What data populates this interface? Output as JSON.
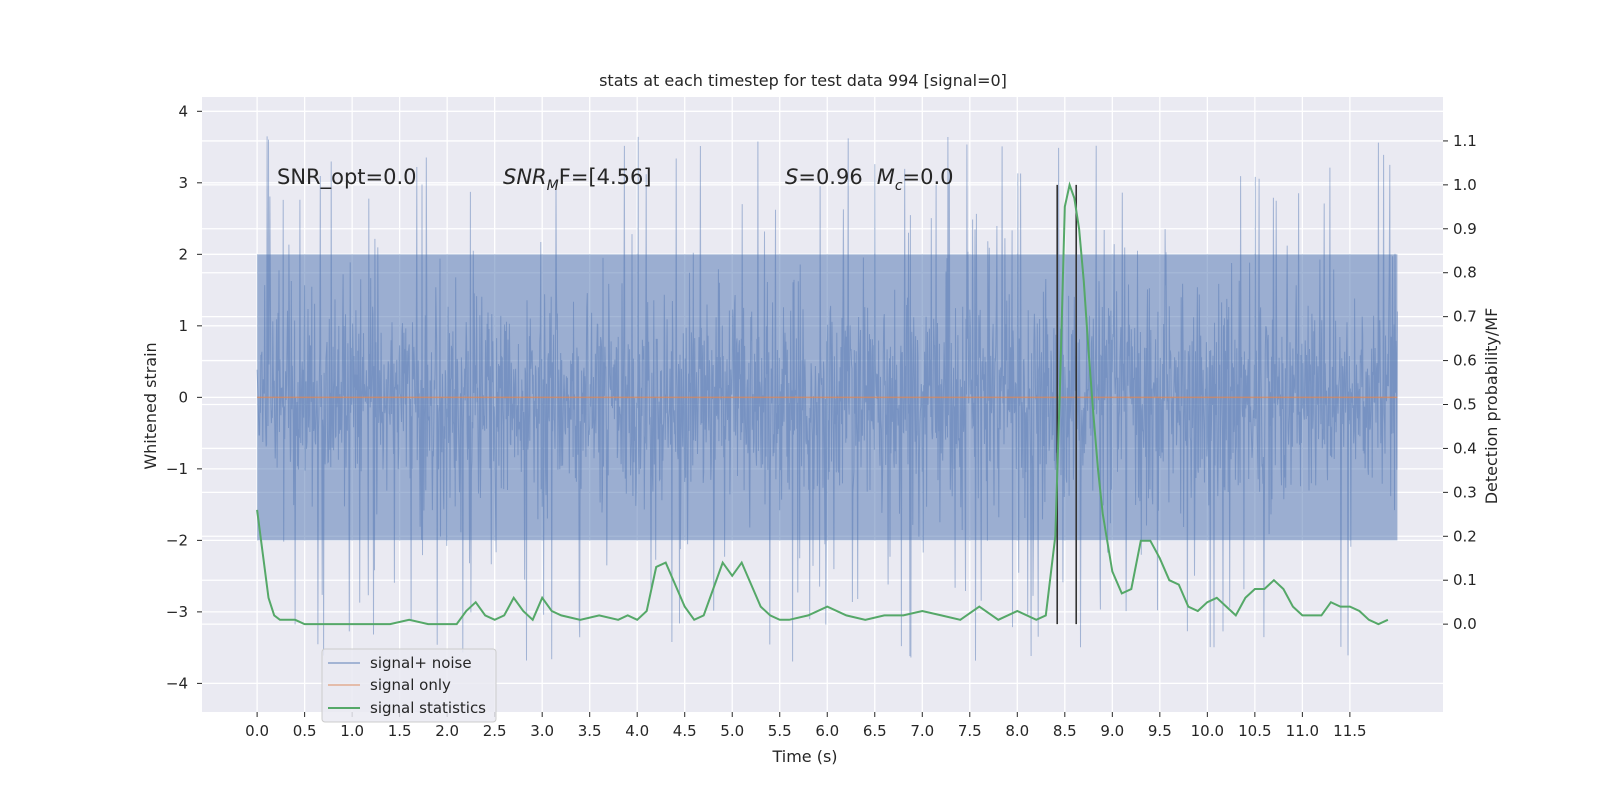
{
  "chart_data": {
    "type": "line",
    "title": "stats at each timestep for test data 994 [signal=0]",
    "xlabel": "Time (s)",
    "ylabel": "Whitened strain",
    "y2label": "Detection probability/MF",
    "xlim": [
      -0.58,
      12.48
    ],
    "ylim": [
      -4.4,
      4.2
    ],
    "y2lim": [
      -0.2,
      1.2
    ],
    "x_ticks": [
      0.0,
      0.5,
      1.0,
      1.5,
      2.0,
      2.5,
      3.0,
      3.5,
      4.0,
      4.5,
      5.0,
      5.5,
      6.0,
      6.5,
      7.0,
      7.5,
      8.0,
      8.5,
      9.0,
      9.5,
      10.0,
      10.5,
      11.0,
      11.5
    ],
    "x_tick_labels": [
      "0.0",
      "0.5",
      "1.0",
      "1.5",
      "2.0",
      "2.5",
      "3.0",
      "3.5",
      "4.0",
      "4.5",
      "5.0",
      "5.5",
      "6.0",
      "6.5",
      "7.0",
      "7.5",
      "8.0",
      "8.5",
      "9.0",
      "9.5",
      "10.0",
      "10.5",
      "11.0",
      "11.5"
    ],
    "y_ticks": [
      4,
      3,
      2,
      1,
      0,
      -1,
      -2,
      -3,
      -4
    ],
    "y_tick_labels": [
      "4",
      "3",
      "2",
      "1",
      "0",
      "−1",
      "−2",
      "−3",
      "−4"
    ],
    "y2_ticks": [
      1.1,
      1.0,
      0.9,
      0.8,
      0.7,
      0.6,
      0.5,
      0.4,
      0.3,
      0.2,
      0.1,
      0.0
    ],
    "y2_tick_labels": [
      "1.1",
      "1.0",
      "0.9",
      "0.8",
      "0.7",
      "0.6",
      "0.5",
      "0.4",
      "0.3",
      "0.2",
      "0.1",
      "0.0"
    ],
    "grid": true,
    "legend_position": "lower-left",
    "series": [
      {
        "name": "signal+ noise",
        "color": "#4c72b0",
        "style": "dense noise trace",
        "x_range": [
          0.0,
          12.0
        ],
        "band_extent": [
          -2.0,
          2.0
        ],
        "peak_extent": [
          -4.1,
          3.85
        ]
      },
      {
        "name": "signal only",
        "color": "#dd8452",
        "style": "flat line",
        "x": [
          0.0,
          12.0
        ],
        "y": [
          0.0,
          0.0
        ]
      },
      {
        "name": "signal statistics",
        "color": "#55a868",
        "axis": "right",
        "x": [
          0.0,
          0.06,
          0.12,
          0.18,
          0.24,
          0.3,
          0.4,
          0.5,
          0.6,
          0.8,
          1.0,
          1.2,
          1.4,
          1.6,
          1.8,
          2.0,
          2.1,
          2.2,
          2.3,
          2.4,
          2.5,
          2.6,
          2.7,
          2.8,
          2.9,
          3.0,
          3.1,
          3.2,
          3.4,
          3.6,
          3.8,
          3.9,
          4.0,
          4.1,
          4.2,
          4.3,
          4.4,
          4.5,
          4.6,
          4.7,
          4.8,
          4.9,
          5.0,
          5.1,
          5.2,
          5.3,
          5.4,
          5.5,
          5.6,
          5.8,
          6.0,
          6.2,
          6.4,
          6.6,
          6.8,
          7.0,
          7.2,
          7.4,
          7.6,
          7.8,
          8.0,
          8.2,
          8.3,
          8.4,
          8.45,
          8.5,
          8.55,
          8.6,
          8.65,
          8.7,
          8.75,
          8.8,
          8.85,
          8.9,
          9.0,
          9.1,
          9.2,
          9.3,
          9.4,
          9.5,
          9.6,
          9.7,
          9.8,
          9.9,
          10.0,
          10.1,
          10.2,
          10.3,
          10.4,
          10.5,
          10.6,
          10.7,
          10.8,
          10.9,
          11.0,
          11.1,
          11.2,
          11.3,
          11.4,
          11.5,
          11.6,
          11.7,
          11.8,
          11.9
        ],
        "y": [
          0.26,
          0.16,
          0.06,
          0.02,
          0.01,
          0.01,
          0.01,
          0.0,
          0.0,
          0.0,
          0.0,
          0.0,
          0.0,
          0.01,
          0.0,
          0.0,
          0.0,
          0.03,
          0.05,
          0.02,
          0.01,
          0.02,
          0.06,
          0.03,
          0.01,
          0.06,
          0.03,
          0.02,
          0.01,
          0.02,
          0.01,
          0.02,
          0.01,
          0.03,
          0.13,
          0.14,
          0.09,
          0.04,
          0.01,
          0.02,
          0.08,
          0.14,
          0.11,
          0.14,
          0.09,
          0.04,
          0.02,
          0.01,
          0.01,
          0.02,
          0.04,
          0.02,
          0.01,
          0.02,
          0.02,
          0.03,
          0.02,
          0.01,
          0.04,
          0.01,
          0.03,
          0.01,
          0.02,
          0.2,
          0.55,
          0.95,
          1.0,
          0.97,
          0.9,
          0.78,
          0.62,
          0.48,
          0.35,
          0.25,
          0.12,
          0.07,
          0.08,
          0.19,
          0.19,
          0.15,
          0.1,
          0.09,
          0.04,
          0.03,
          0.05,
          0.06,
          0.04,
          0.02,
          0.06,
          0.08,
          0.08,
          0.1,
          0.08,
          0.04,
          0.02,
          0.02,
          0.02,
          0.05,
          0.04,
          0.04,
          0.03,
          0.01,
          0.0,
          0.01
        ]
      }
    ],
    "vertical_lines": [
      {
        "x": 8.42,
        "color": "#333333"
      },
      {
        "x": 8.62,
        "color": "#333333"
      }
    ],
    "annotations": [
      {
        "text": "SNR_opt=0.0",
        "x": 0.2,
        "y": 3.0
      },
      {
        "text": "SNR_MF=[4.56]",
        "x": 2.6,
        "y": 3.0
      },
      {
        "text": "S=0.96   M_c=0.0",
        "x": 5.6,
        "y": 3.0
      }
    ],
    "annotation_parts": {
      "snr_opt": "SNR_opt=0.0",
      "snr_mf_main": "SNR",
      "snr_mf_sub": "M",
      "snr_mf_rest": "F=[4.56]",
      "s_symbol": "S",
      "s_value": "=0.96",
      "mc_symbol": "M",
      "mc_sub": "c",
      "mc_value": "=0.0"
    }
  }
}
